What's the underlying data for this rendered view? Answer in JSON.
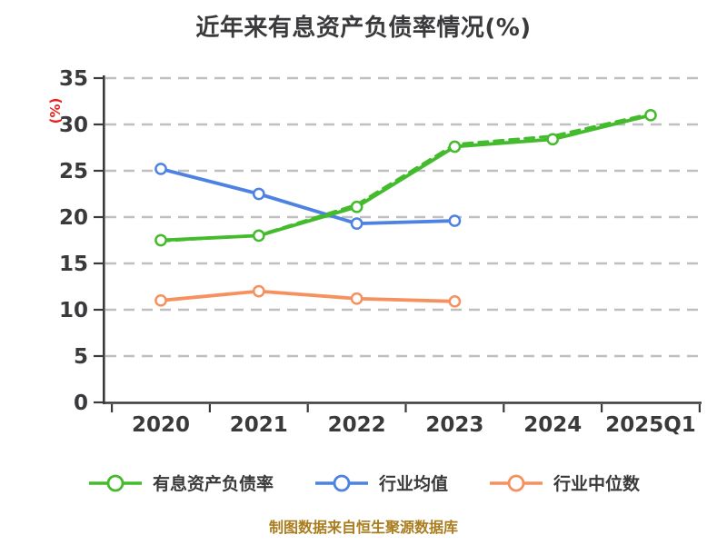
{
  "title": "近年来有息资产负债率情况(%)",
  "footer": "制图数据来自恒生聚源数据库",
  "y_axis": {
    "label": "(%)",
    "ticks": [
      0,
      5,
      10,
      15,
      20,
      25,
      30,
      35
    ],
    "min": 0,
    "max": 35
  },
  "x_axis": {
    "categories": [
      "2020",
      "2021",
      "2022",
      "2023",
      "2024",
      "2025Q1"
    ]
  },
  "style_colors": {
    "title_text": "#3a3a3c",
    "axis": "#3a3a3c",
    "tick_text": "#3a3a3c",
    "grid": "#bfbfbf",
    "y_label_red": "#ee1c1c",
    "footer_gold": "#aa7d1e",
    "marker_fill": "#ffffff"
  },
  "chart_data": {
    "type": "line",
    "categories": [
      "2020",
      "2021",
      "2022",
      "2023",
      "2024",
      "2025Q1"
    ],
    "title": "近年来有息资产负债率情况(%)",
    "ylabel": "(%)",
    "ylim": [
      0,
      35
    ],
    "grid": "horizontal-dashed",
    "legend_position": "bottom",
    "series": [
      {
        "name": "有息资产负债率",
        "color": "#43bb2c",
        "style": "solid",
        "in_legend": true,
        "values": [
          17.5,
          18.0,
          21.1,
          27.6,
          28.4,
          31.0
        ]
      },
      {
        "name": "行业均值",
        "color": "#4d82e2",
        "style": "solid",
        "in_legend": true,
        "values": [
          25.2,
          22.5,
          19.3,
          19.6
        ]
      },
      {
        "name": "行业中位数",
        "color": "#f6915f",
        "style": "solid",
        "in_legend": true,
        "values": [
          11.0,
          12.0,
          11.2,
          10.9
        ]
      },
      {
        "name": "",
        "color": "#43bb2c",
        "style": "dashed",
        "in_legend": false,
        "values": [
          17.4,
          18.05,
          21.35,
          27.85,
          28.75,
          31.15
        ]
      }
    ]
  }
}
